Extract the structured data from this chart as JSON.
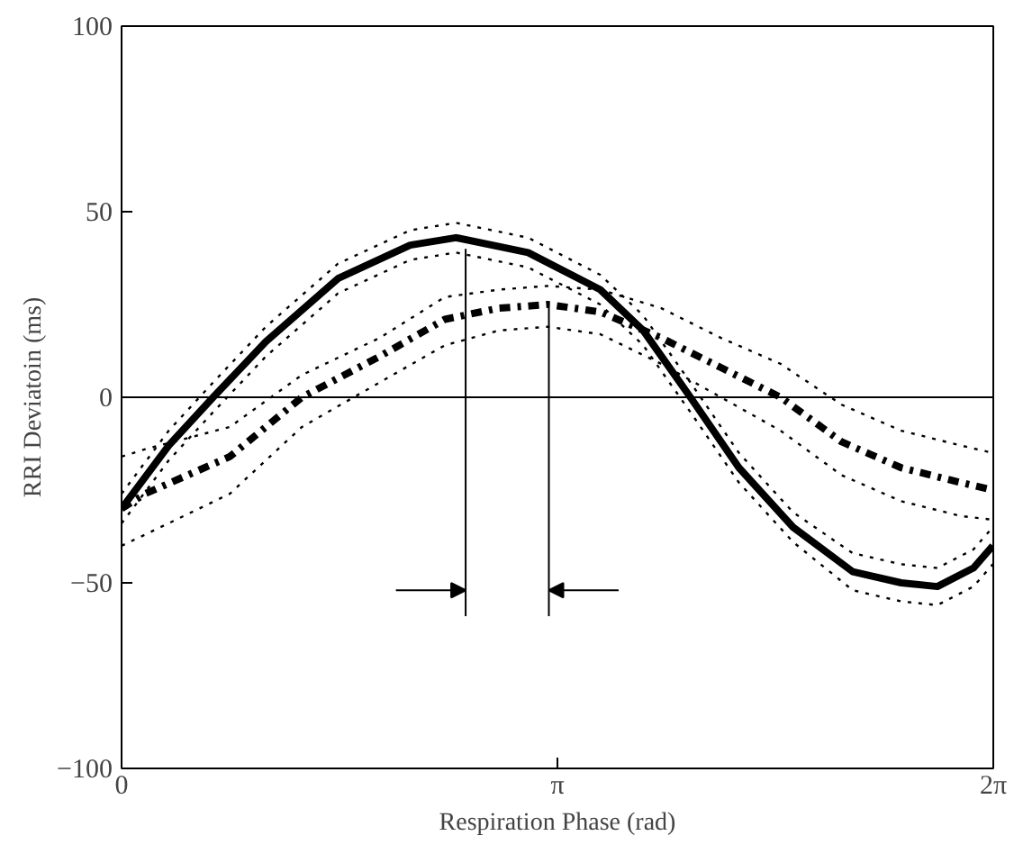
{
  "chart_data": {
    "type": "line",
    "xlabel": "Respiration Phase (rad)",
    "ylabel": "RRI Deviatoin (ms)",
    "xlim": [
      0,
      6.283185
    ],
    "ylim": [
      -100,
      100
    ],
    "xticks": [
      0,
      {
        "value": 3.141593,
        "label": "π"
      },
      {
        "value": 6.283185,
        "label": "2π"
      }
    ],
    "yticks": [
      -100,
      -50,
      0,
      50,
      100
    ],
    "grid": false,
    "ref_lines": [
      {
        "axis": "y",
        "value": 0,
        "color": "#000000"
      }
    ],
    "series": [
      {
        "color": "#000000",
        "line_style": "solid",
        "x": [
          0,
          0.34,
          0.66,
          1.04,
          1.56,
          2.08,
          2.41,
          2.93,
          3.45,
          3.76,
          4.1,
          4.45,
          4.84,
          5.27,
          5.62,
          5.88,
          6.14,
          6.28
        ],
        "values": [
          -30,
          -13,
          0,
          15,
          32,
          41,
          43,
          39,
          29,
          18,
          0,
          -19,
          -35,
          -47,
          -50,
          -51,
          -46,
          -40
        ]
      },
      {
        "color": "#000000",
        "line_style": "dotted",
        "x": [
          0,
          0.34,
          0.66,
          1.04,
          1.56,
          2.08,
          2.41,
          2.93,
          3.45,
          3.76,
          4.1,
          4.45,
          4.84,
          5.27,
          5.62,
          5.88,
          6.14,
          6.28
        ],
        "values": [
          -26,
          -9,
          4,
          19,
          36,
          45,
          47,
          43,
          33,
          22,
          4,
          -15,
          -31,
          -42,
          -45,
          -46,
          -41,
          -35
        ]
      },
      {
        "color": "#000000",
        "line_style": "dotted",
        "x": [
          0,
          0.34,
          0.66,
          1.04,
          1.56,
          2.08,
          2.41,
          2.93,
          3.45,
          3.76,
          4.1,
          4.45,
          4.84,
          5.27,
          5.62,
          5.88,
          6.14,
          6.28
        ],
        "values": [
          -34,
          -17,
          -4,
          11,
          28,
          37,
          39,
          35,
          25,
          14,
          -4,
          -23,
          -39,
          -52,
          -55,
          -56,
          -51,
          -45
        ]
      },
      {
        "color": "#000000",
        "line_style": "dashdot",
        "x": [
          0,
          0.17,
          0.78,
          1.3,
          1.86,
          2.33,
          2.72,
          3.07,
          3.45,
          3.89,
          4.32,
          4.75,
          5.19,
          5.62,
          6.05,
          6.28
        ],
        "values": [
          -30,
          -26,
          -16,
          0,
          11,
          21,
          24,
          25,
          23,
          16,
          8,
          0,
          -12,
          -19,
          -23,
          -25
        ]
      },
      {
        "color": "#000000",
        "line_style": "dotted",
        "x": [
          0,
          0.17,
          0.78,
          1.3,
          1.86,
          2.33,
          2.72,
          3.07,
          3.45,
          3.89,
          4.32,
          4.75,
          5.19,
          5.62,
          6.05,
          6.28
        ],
        "values": [
          -16,
          -14,
          -8,
          6,
          16,
          27,
          29,
          30,
          29,
          24,
          16,
          9,
          -2,
          -9,
          -13,
          -15
        ]
      },
      {
        "color": "#000000",
        "line_style": "dotted",
        "x": [
          0,
          0.17,
          0.78,
          1.3,
          1.86,
          2.33,
          2.72,
          3.07,
          3.45,
          3.89,
          4.32,
          4.75,
          5.19,
          5.62,
          6.05,
          6.28
        ],
        "values": [
          -40,
          -37,
          -26,
          -8,
          4,
          14,
          18,
          19,
          17,
          9,
          0,
          -9,
          -21,
          -28,
          -32,
          -33
        ]
      },
      {
        "type": "line",
        "color": "#000000",
        "line_style": "solid",
        "x": [
          2.48,
          2.48
        ],
        "values": [
          40,
          -59
        ]
      },
      {
        "type": "line",
        "color": "#000000",
        "line_style": "solid",
        "x": [
          3.08,
          3.08
        ],
        "values": [
          25,
          -59
        ]
      }
    ]
  }
}
